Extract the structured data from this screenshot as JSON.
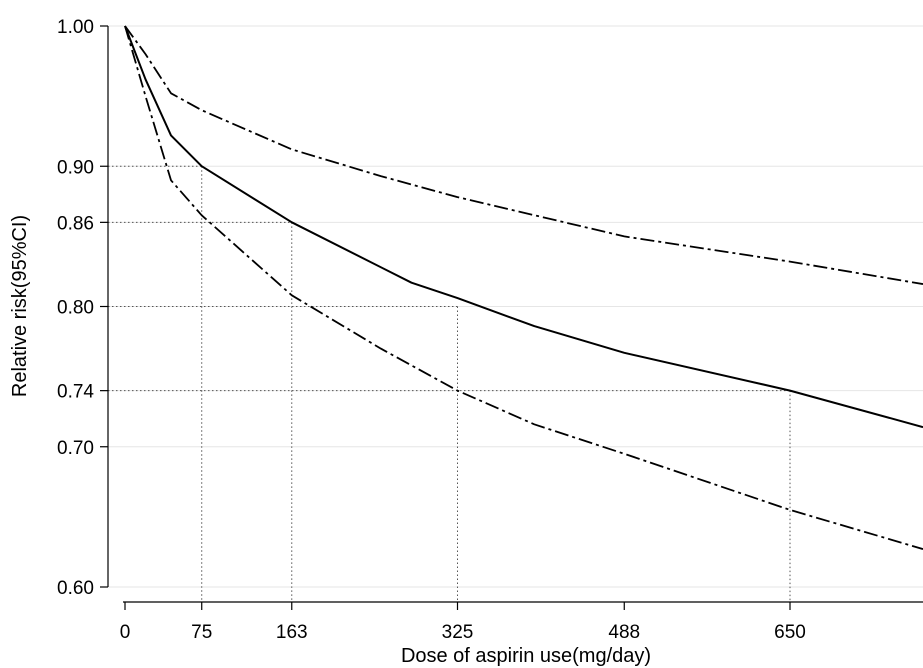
{
  "chart_data": {
    "type": "line",
    "xlabel": "Dose of aspirin use(mg/day)",
    "ylabel": "Relative risk(95%CI)",
    "xlim": [
      0,
      780
    ],
    "ylim": [
      0.6,
      1.0
    ],
    "x_ticks": [
      0,
      75,
      163,
      325,
      488,
      650
    ],
    "y_ticks": [
      0.6,
      0.7,
      0.74,
      0.8,
      0.86,
      0.9,
      1.0
    ],
    "y_tick_labels": [
      "0.60",
      "0.70",
      "0.74",
      "0.80",
      "0.86",
      "0.90",
      "1.00"
    ],
    "grid": true,
    "colors": {
      "line": "#000000",
      "grid": "#e6e6e6",
      "refline": "#555555"
    },
    "series": [
      {
        "style": "solid",
        "x": [
          0,
          20,
          45,
          75,
          163,
          280,
          325,
          400,
          488,
          650,
          780
        ],
        "y": [
          1.0,
          0.962,
          0.922,
          0.9,
          0.86,
          0.817,
          0.806,
          0.786,
          0.767,
          0.74,
          0.714
        ]
      },
      {
        "style": "dashdot",
        "x": [
          0,
          20,
          45,
          75,
          163,
          250,
          325,
          488,
          650,
          780
        ],
        "y": [
          1.0,
          0.98,
          0.952,
          0.94,
          0.912,
          0.893,
          0.878,
          0.85,
          0.832,
          0.816
        ]
      },
      {
        "style": "dashdot",
        "x": [
          0,
          20,
          45,
          75,
          163,
          250,
          325,
          400,
          488,
          650,
          780
        ],
        "y": [
          1.0,
          0.95,
          0.89,
          0.865,
          0.808,
          0.77,
          0.74,
          0.716,
          0.695,
          0.655,
          0.627
        ]
      }
    ],
    "reference_lines": [
      {
        "x": 75,
        "y": 0.9
      },
      {
        "x": 163,
        "y": 0.86
      },
      {
        "x": 325,
        "y": 0.8
      },
      {
        "x": 650,
        "y": 0.74
      }
    ]
  }
}
